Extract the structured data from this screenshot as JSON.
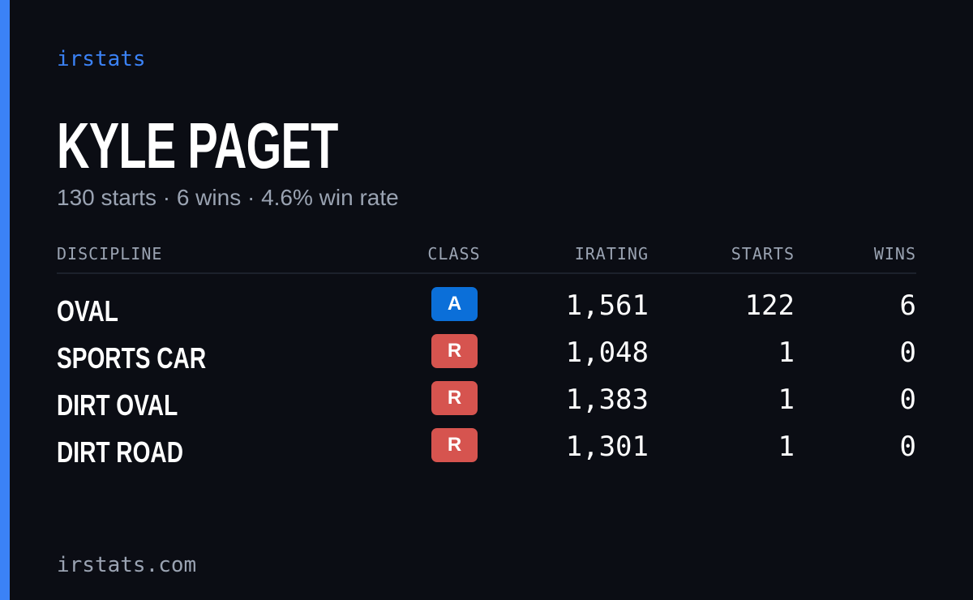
{
  "brand": "irstats",
  "player": {
    "name": "KYLE PAGET",
    "summary": "130 starts · 6 wins · 4.6% win rate"
  },
  "table": {
    "columns": [
      "DISCIPLINE",
      "CLASS",
      "IRATING",
      "STARTS",
      "WINS"
    ],
    "rows": [
      {
        "discipline": "OVAL",
        "class": "A",
        "class_color": "#0b6fd9",
        "irating": "1,561",
        "starts": "122",
        "wins": "6"
      },
      {
        "discipline": "SPORTS CAR",
        "class": "R",
        "class_color": "#d6544f",
        "irating": "1,048",
        "starts": "1",
        "wins": "0"
      },
      {
        "discipline": "DIRT OVAL",
        "class": "R",
        "class_color": "#d6544f",
        "irating": "1,383",
        "starts": "1",
        "wins": "0"
      },
      {
        "discipline": "DIRT ROAD",
        "class": "R",
        "class_color": "#d6544f",
        "irating": "1,301",
        "starts": "1",
        "wins": "0"
      }
    ]
  },
  "footer": "irstats.com"
}
